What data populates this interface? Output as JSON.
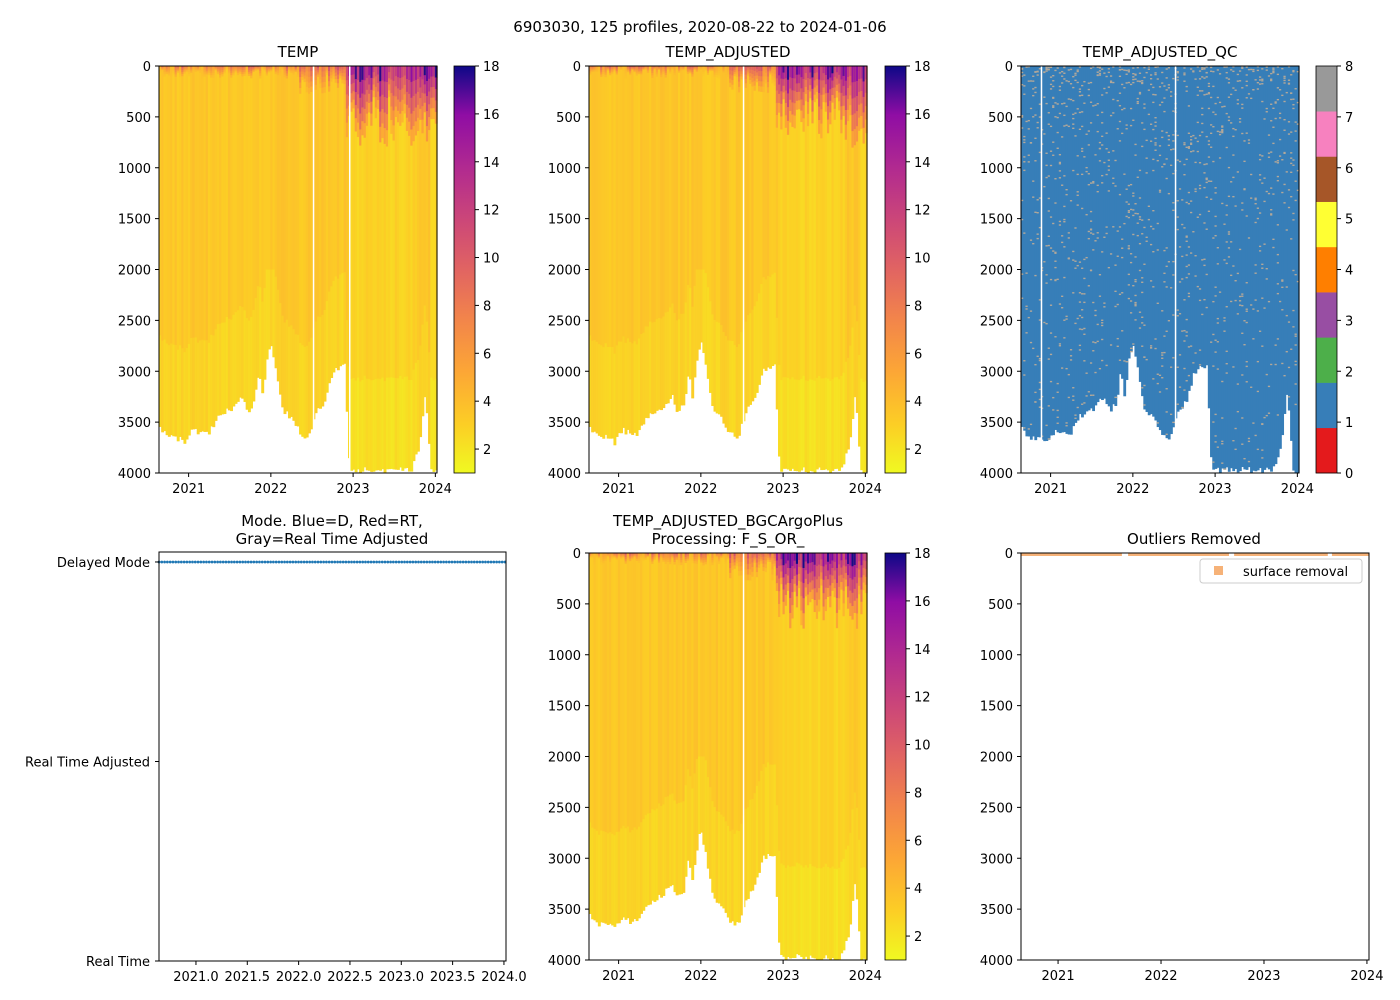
{
  "figure": {
    "suptitle": "6903030, 125 profiles, 2020-08-22 to 2024-01-06"
  },
  "colors": {
    "plasma_low": "#f0f921",
    "plasma_mid": "#f89540",
    "plasma_high": "#0d0887",
    "qc_good": "#377eb8",
    "qc_marks": "#b2a89a",
    "outlier_orange": "#f4a460",
    "mode_blue": "#1f77b4"
  },
  "chart_data": [
    {
      "id": "temp",
      "type": "heatmap",
      "title": "TEMP",
      "x_unit": "year",
      "xlim": [
        2020.64,
        2024.02
      ],
      "x_ticks": [
        "2021",
        "2022",
        "2023",
        "2024"
      ],
      "ylim": [
        4000,
        0
      ],
      "y_ticks": [
        "0",
        "500",
        "1000",
        "1500",
        "2000",
        "2500",
        "3000",
        "3500",
        "4000"
      ],
      "colorbar": {
        "min": 1,
        "max": 18,
        "ticks": [
          "2",
          "4",
          "6",
          "8",
          "10",
          "12",
          "14",
          "16",
          "18"
        ],
        "cmap": "plasma_r"
      },
      "surface_temp_range": [
        4,
        18
      ],
      "deep_temp": 3.5,
      "gaps_year": [
        2022.51,
        2022.95
      ],
      "max_depth_profile": [
        [
          2020.64,
          3550
        ],
        [
          2020.75,
          3650
        ],
        [
          2020.85,
          3650
        ],
        [
          2020.95,
          3700
        ],
        [
          2021.05,
          3580
        ],
        [
          2021.15,
          3620
        ],
        [
          2021.25,
          3600
        ],
        [
          2021.35,
          3450
        ],
        [
          2021.45,
          3400
        ],
        [
          2021.55,
          3350
        ],
        [
          2021.65,
          3250
        ],
        [
          2021.72,
          3400
        ],
        [
          2021.8,
          3300
        ],
        [
          2021.85,
          3000
        ],
        [
          2021.9,
          3250
        ],
        [
          2021.95,
          2900
        ],
        [
          2022.0,
          2700
        ],
        [
          2022.08,
          3050
        ],
        [
          2022.15,
          3400
        ],
        [
          2022.25,
          3450
        ],
        [
          2022.35,
          3600
        ],
        [
          2022.45,
          3650
        ],
        [
          2022.55,
          3400
        ],
        [
          2022.65,
          3300
        ],
        [
          2022.75,
          3000
        ],
        [
          2022.9,
          2950
        ],
        [
          2022.96,
          3980
        ],
        [
          2023.2,
          3970
        ],
        [
          2023.45,
          3970
        ],
        [
          2023.7,
          3980
        ],
        [
          2023.8,
          3750
        ],
        [
          2023.88,
          3200
        ],
        [
          2023.95,
          3990
        ],
        [
          2024.0,
          3990
        ]
      ]
    },
    {
      "id": "temp_adjusted",
      "type": "heatmap",
      "title": "TEMP_ADJUSTED",
      "x_unit": "year",
      "xlim": [
        2020.64,
        2024.02
      ],
      "x_ticks": [
        "2021",
        "2022",
        "2023",
        "2024"
      ],
      "ylim": [
        4000,
        0
      ],
      "y_ticks": [
        "0",
        "500",
        "1000",
        "1500",
        "2000",
        "2500",
        "3000",
        "3500",
        "4000"
      ],
      "colorbar": {
        "min": 1,
        "max": 18,
        "ticks": [
          "2",
          "4",
          "6",
          "8",
          "10",
          "12",
          "14",
          "16",
          "18"
        ],
        "cmap": "plasma_r"
      },
      "surface_temp_range": [
        4,
        18
      ],
      "deep_temp": 3.5,
      "gaps_year": [
        2022.51
      ],
      "max_depth_profile": "same_as_temp"
    },
    {
      "id": "temp_adjusted_qc",
      "type": "heatmap",
      "title": "TEMP_ADJUSTED_QC",
      "x_unit": "year",
      "xlim": [
        2020.64,
        2024.02
      ],
      "x_ticks": [
        "2021",
        "2022",
        "2023",
        "2024"
      ],
      "ylim": [
        4000,
        0
      ],
      "y_ticks": [
        "0",
        "500",
        "1000",
        "1500",
        "2000",
        "2500",
        "3000",
        "3500",
        "4000"
      ],
      "colorbar": {
        "min": 0,
        "max": 8,
        "ticks": [
          "0",
          "1",
          "2",
          "3",
          "4",
          "5",
          "6",
          "7",
          "8"
        ],
        "categories": [
          "#e41a1c",
          "#377eb8",
          "#4daf4a",
          "#984ea3",
          "#ff7f00",
          "#ffff33",
          "#a65628",
          "#f781bf",
          "#999999"
        ]
      },
      "dominant_qc": 1,
      "marked_qc": 8,
      "gaps_year": [
        2020.88,
        2022.51
      ],
      "max_depth_profile": "same_as_temp"
    },
    {
      "id": "mode",
      "type": "scatter",
      "title_lines": [
        "Mode. Blue=D, Red=RT,",
        "Gray=Real Time Adjusted"
      ],
      "x_unit": "year",
      "xlim": [
        2020.64,
        2024.02
      ],
      "x_ticks": [
        "2021.0",
        "2021.5",
        "2022.0",
        "2022.5",
        "2023.0",
        "2023.5",
        "2024.0"
      ],
      "y_categories": [
        "Real Time",
        "Real Time Adjusted",
        "Delayed Mode"
      ],
      "ylim": [
        0,
        2.05
      ],
      "series": [
        {
          "name": "Delayed Mode",
          "y": 2,
          "x_range": [
            2020.64,
            2024.01
          ],
          "count": 125,
          "color": "#1f77b4"
        }
      ]
    },
    {
      "id": "bgc_plus",
      "type": "heatmap",
      "title_lines": [
        "TEMP_ADJUSTED_BGCArgoPlus",
        "Processing: F_S_OR_"
      ],
      "x_unit": "year",
      "xlim": [
        2020.64,
        2024.02
      ],
      "x_ticks": [
        "2021",
        "2022",
        "2023",
        "2024"
      ],
      "ylim": [
        4000,
        0
      ],
      "y_ticks": [
        "0",
        "500",
        "1000",
        "1500",
        "2000",
        "2500",
        "3000",
        "3500",
        "4000"
      ],
      "colorbar": {
        "min": 1,
        "max": 18,
        "ticks": [
          "2",
          "4",
          "6",
          "8",
          "10",
          "12",
          "14",
          "16",
          "18"
        ],
        "cmap": "plasma_r"
      },
      "surface_temp_range": [
        4,
        18
      ],
      "deep_temp": 3.5,
      "gaps_year": [
        2022.51
      ],
      "max_depth_profile": "same_as_temp"
    },
    {
      "id": "outliers",
      "type": "scatter",
      "title": "Outliers Removed",
      "x_unit": "year",
      "xlim": [
        2020.64,
        2024.02
      ],
      "x_ticks": [
        "2021",
        "2022",
        "2023",
        "2024"
      ],
      "ylim": [
        4000,
        0
      ],
      "y_ticks": [
        "0",
        "500",
        "1000",
        "1500",
        "2000",
        "2500",
        "3000",
        "3500",
        "4000"
      ],
      "legend": {
        "label": "surface removal",
        "placement": "top-right"
      },
      "series": [
        {
          "name": "surface removal",
          "depth_range": [
            0,
            25
          ],
          "x_segments": [
            [
              2020.64,
              2021.62
            ],
            [
              2021.68,
              2022.66
            ],
            [
              2022.71,
              2023.62
            ],
            [
              2023.66,
              2024.02
            ]
          ],
          "color": "#f4a460"
        }
      ]
    }
  ]
}
